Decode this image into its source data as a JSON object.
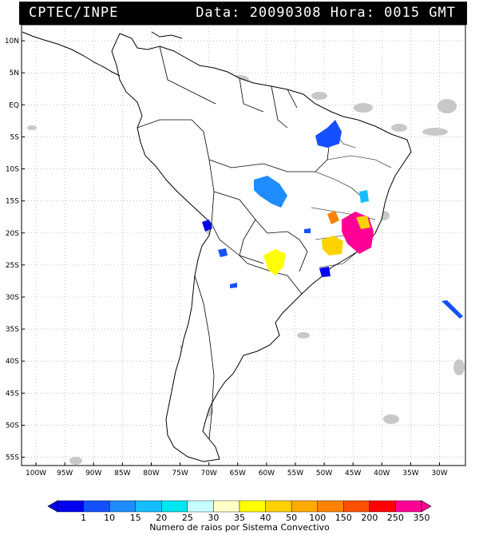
{
  "header": {
    "source": "CPTEC/INPE",
    "datetime": "Data: 20090308 Hora: 0015 GMT"
  },
  "map": {
    "lat_ticks": [
      "10N",
      "5N",
      "EQ",
      "5S",
      "10S",
      "15S",
      "20S",
      "25S",
      "30S",
      "35S",
      "40S",
      "45S",
      "50S",
      "55S"
    ],
    "lon_ticks": [
      "100W",
      "95W",
      "90W",
      "85W",
      "80W",
      "75W",
      "70W",
      "65W",
      "60W",
      "55W",
      "50W",
      "45W",
      "40W",
      "35W",
      "30W"
    ],
    "lat_values": [
      10,
      5,
      0,
      -5,
      -10,
      -15,
      -20,
      -25,
      -30,
      -35,
      -40,
      -45,
      -50,
      -55
    ],
    "lon_values": [
      -100,
      -95,
      -90,
      -85,
      -80,
      -75,
      -70,
      -65,
      -60,
      -55,
      -50,
      -45,
      -40,
      -35,
      -30
    ],
    "cloud_color": "#c8c8c8"
  },
  "colorbar": {
    "title": "Numero de raios por Sistema Convectivo",
    "labels": [
      "1",
      "10",
      "15",
      "20",
      "25",
      "30",
      "35",
      "40",
      "50",
      "100",
      "150",
      "200",
      "250",
      "350"
    ],
    "colors": [
      "#0000ee",
      "#1450ff",
      "#1e8cff",
      "#14beff",
      "#00e6f0",
      "#c8ffff",
      "#ffffc8",
      "#ffff00",
      "#ffd200",
      "#ffaa00",
      "#ff8200",
      "#ff5000",
      "#ff0000",
      "#ff0096"
    ]
  },
  "systems": [
    {
      "name": "northeast-brazil",
      "color": "#1450ff"
    },
    {
      "name": "central-brazil",
      "color": "#1e8cff"
    },
    {
      "name": "bolivia-peru-border",
      "color": "#0000ee"
    },
    {
      "name": "paraguay",
      "color": "#ffff00"
    },
    {
      "name": "southeast-brazil",
      "color": "#ff0096"
    },
    {
      "name": "sao-paulo",
      "color": "#ffd200"
    },
    {
      "name": "minas-gerais",
      "color": "#ff8200"
    },
    {
      "name": "south-atlantic",
      "color": "#1450ff"
    }
  ]
}
